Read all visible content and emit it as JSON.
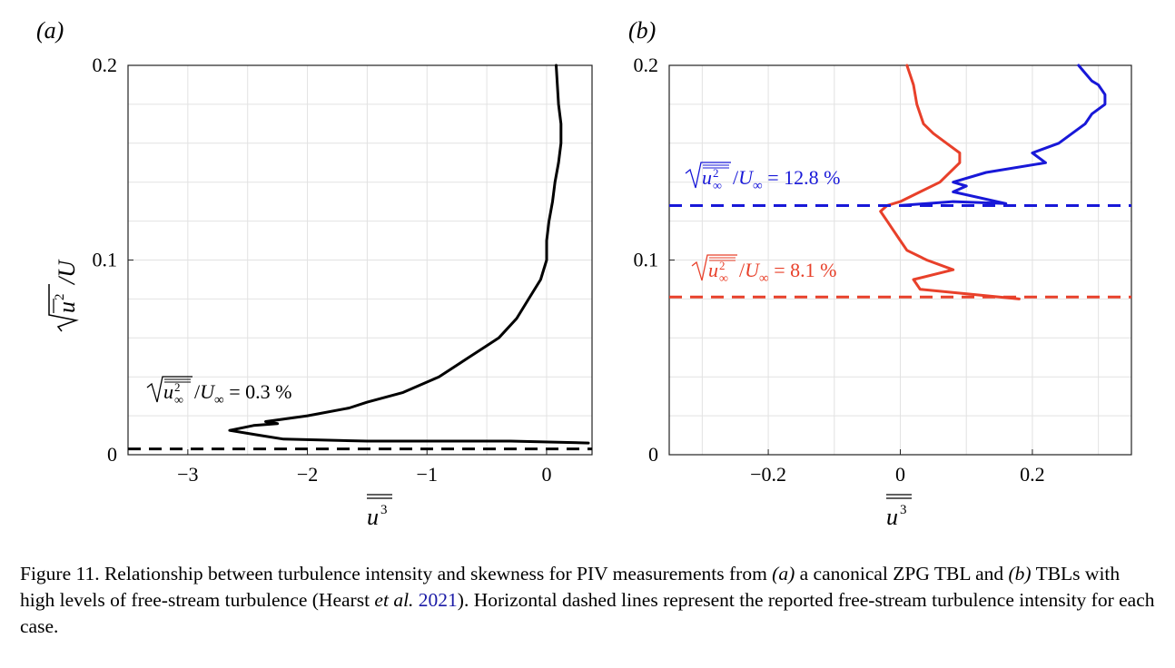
{
  "chart_data": [
    {
      "type": "line",
      "panel_label": "(a)",
      "xlim": [
        -3.5,
        0.38
      ],
      "ylim": [
        0,
        0.2
      ],
      "xticks": [
        -3,
        -2,
        -1,
        0
      ],
      "xtick_labels": [
        "−3",
        "−2",
        "−1",
        "0"
      ],
      "yticks": [
        0,
        0.1,
        0.2
      ],
      "ytick_labels": [
        "0",
        "0.1",
        "0.2"
      ],
      "xlabel": "u³ (double overline)",
      "ylabel": "√(u² double overline)/U",
      "grid": true,
      "series": [
        {
          "color": "#000000",
          "x": [
            0.35,
            -0.3,
            -1.5,
            -2.2,
            -2.4,
            -2.65,
            -2.45,
            -2.25,
            -2.35,
            -2.0,
            -1.65,
            -1.5,
            -1.2,
            -0.9,
            -0.65,
            -0.4,
            -0.25,
            -0.15,
            -0.05,
            0.0,
            0.0,
            0.02,
            0.05,
            0.07,
            0.1,
            0.12,
            0.12,
            0.1,
            0.09,
            0.08
          ],
          "y": [
            0.006,
            0.007,
            0.007,
            0.008,
            0.01,
            0.0125,
            0.015,
            0.016,
            0.017,
            0.02,
            0.024,
            0.027,
            0.032,
            0.04,
            0.05,
            0.06,
            0.07,
            0.08,
            0.09,
            0.1,
            0.11,
            0.12,
            0.13,
            0.14,
            0.15,
            0.16,
            0.17,
            0.18,
            0.19,
            0.2
          ]
        }
      ],
      "reference_lines": [
        {
          "y": 0.003,
          "color": "#000000",
          "label_value": "0.3 %"
        }
      ]
    },
    {
      "type": "line",
      "panel_label": "(b)",
      "xlim": [
        -0.35,
        0.35
      ],
      "ylim": [
        0,
        0.2
      ],
      "xticks": [
        -0.2,
        0,
        0.2
      ],
      "xtick_labels": [
        "−0.2",
        "0",
        "0.2"
      ],
      "yticks": [
        0,
        0.1,
        0.2
      ],
      "ytick_labels": [
        "0",
        "0.1",
        "0.2"
      ],
      "xlabel": "u³ (double overline)",
      "grid": true,
      "series": [
        {
          "color": "#e8402a",
          "x": [
            0.18,
            0.12,
            0.03,
            0.02,
            0.08,
            0.04,
            0.01,
            0.0,
            -0.01,
            -0.02,
            -0.03,
            -0.02,
            0.0,
            0.03,
            0.06,
            0.09,
            0.09,
            0.07,
            0.05,
            0.035,
            0.025,
            0.02,
            0.015,
            0.01
          ],
          "y": [
            0.08,
            0.082,
            0.085,
            0.09,
            0.095,
            0.1,
            0.105,
            0.11,
            0.115,
            0.12,
            0.125,
            0.128,
            0.13,
            0.135,
            0.14,
            0.15,
            0.155,
            0.16,
            0.165,
            0.17,
            0.18,
            0.19,
            0.195,
            0.2
          ]
        },
        {
          "color": "#1818d8",
          "x": [
            0.0,
            0.08,
            0.16,
            0.08,
            0.1,
            0.08,
            0.13,
            0.22,
            0.2,
            0.24,
            0.26,
            0.28,
            0.29,
            0.31,
            0.31,
            0.3,
            0.29,
            0.28,
            0.27
          ],
          "y": [
            0.128,
            0.13,
            0.129,
            0.135,
            0.138,
            0.14,
            0.145,
            0.15,
            0.155,
            0.16,
            0.165,
            0.17,
            0.175,
            0.18,
            0.185,
            0.19,
            0.192,
            0.196,
            0.2
          ]
        }
      ],
      "reference_lines": [
        {
          "y": 0.128,
          "color": "#1818d8",
          "label_value": "12.8 %"
        },
        {
          "y": 0.081,
          "color": "#e8402a",
          "label_value": "8.1 %"
        }
      ]
    }
  ],
  "annotation_text": {
    "frac_mid": "/",
    "u_inf": "U",
    "inf_sub": "∞",
    "eq": " = "
  },
  "caption": {
    "prefix": "Figure 11.  Relationship between turbulence intensity and skewness for PIV measurements from",
    "label_a": "(a)",
    "text_a": " a canonical ZPG TBL and ",
    "label_b": "(b)",
    "text_b": " TBLs with high levels of free-stream turbulence (Hearst ",
    "etal": "et al.",
    "year": "2021",
    "suffix": "). Horizontal dashed lines represent the reported free-stream turbulence intensity for each case."
  }
}
